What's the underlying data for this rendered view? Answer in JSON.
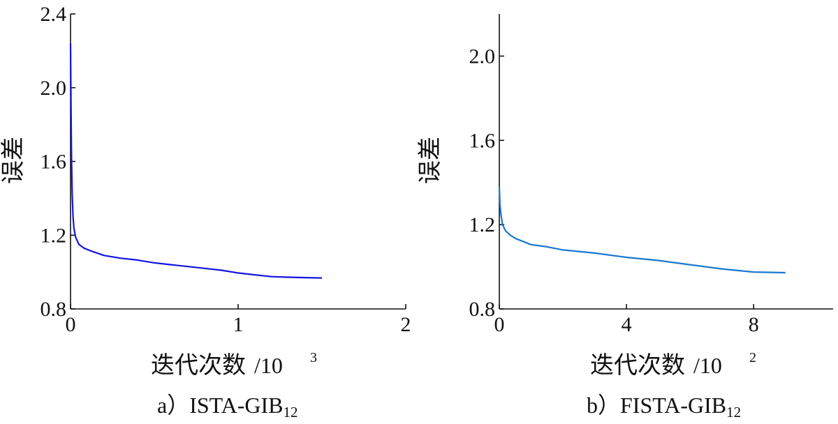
{
  "chart_data": [
    {
      "type": "line",
      "ylabel": "误差",
      "xlabel": "迭代次数",
      "xunit_prefix": "/10",
      "xunit_exp": "3",
      "caption_prefix": "a）",
      "caption_main": "ISTA-GIB",
      "caption_sub": "12",
      "xlim": [
        0,
        2
      ],
      "ylim": [
        0.8,
        2.4
      ],
      "xticks": [
        0,
        1,
        2
      ],
      "xtick_labels": [
        "0",
        "1",
        "2"
      ],
      "yticks": [
        0.8,
        1.2,
        1.6,
        2.0,
        2.4
      ],
      "ytick_labels": [
        "0.8",
        "1.2",
        "1.6",
        "2.0",
        "2.4"
      ],
      "color": "#1414e0",
      "series": [
        {
          "x": [
            0,
            0.003,
            0.006,
            0.01,
            0.015,
            0.02,
            0.03,
            0.05,
            0.08,
            0.12,
            0.2,
            0.3,
            0.4,
            0.5,
            0.6,
            0.7,
            0.8,
            0.9,
            1.0,
            1.1,
            1.2,
            1.3,
            1.4,
            1.5
          ],
          "y": [
            2.24,
            1.9,
            1.62,
            1.42,
            1.3,
            1.24,
            1.19,
            1.15,
            1.13,
            1.115,
            1.09,
            1.075,
            1.065,
            1.05,
            1.04,
            1.03,
            1.02,
            1.01,
            0.995,
            0.985,
            0.975,
            0.972,
            0.97,
            0.968
          ]
        }
      ]
    },
    {
      "type": "line",
      "ylabel": "误差",
      "xlabel": "迭代次数",
      "xunit_prefix": "/10",
      "xunit_exp": "2",
      "caption_prefix": "b）",
      "caption_main": "FISTA-GIB",
      "caption_sub": "12",
      "xlim": [
        0,
        10.5
      ],
      "ylim": [
        0.8,
        2.2
      ],
      "xticks": [
        0,
        4,
        8
      ],
      "xtick_labels": [
        "0",
        "4",
        "8"
      ],
      "yticks": [
        0.8,
        1.2,
        1.6,
        2.0
      ],
      "ytick_labels": [
        "0.8",
        "1.2",
        "1.6",
        "2.0"
      ],
      "color": "#1a78d0",
      "series": [
        {
          "x": [
            0,
            0.02,
            0.05,
            0.1,
            0.2,
            0.35,
            0.5,
            0.75,
            1,
            1.5,
            2,
            3,
            4,
            5,
            6,
            7,
            8,
            9
          ],
          "y": [
            1.38,
            1.3,
            1.25,
            1.2,
            1.17,
            1.15,
            1.135,
            1.12,
            1.105,
            1.095,
            1.08,
            1.065,
            1.045,
            1.03,
            1.01,
            0.99,
            0.975,
            0.972
          ]
        }
      ]
    }
  ]
}
